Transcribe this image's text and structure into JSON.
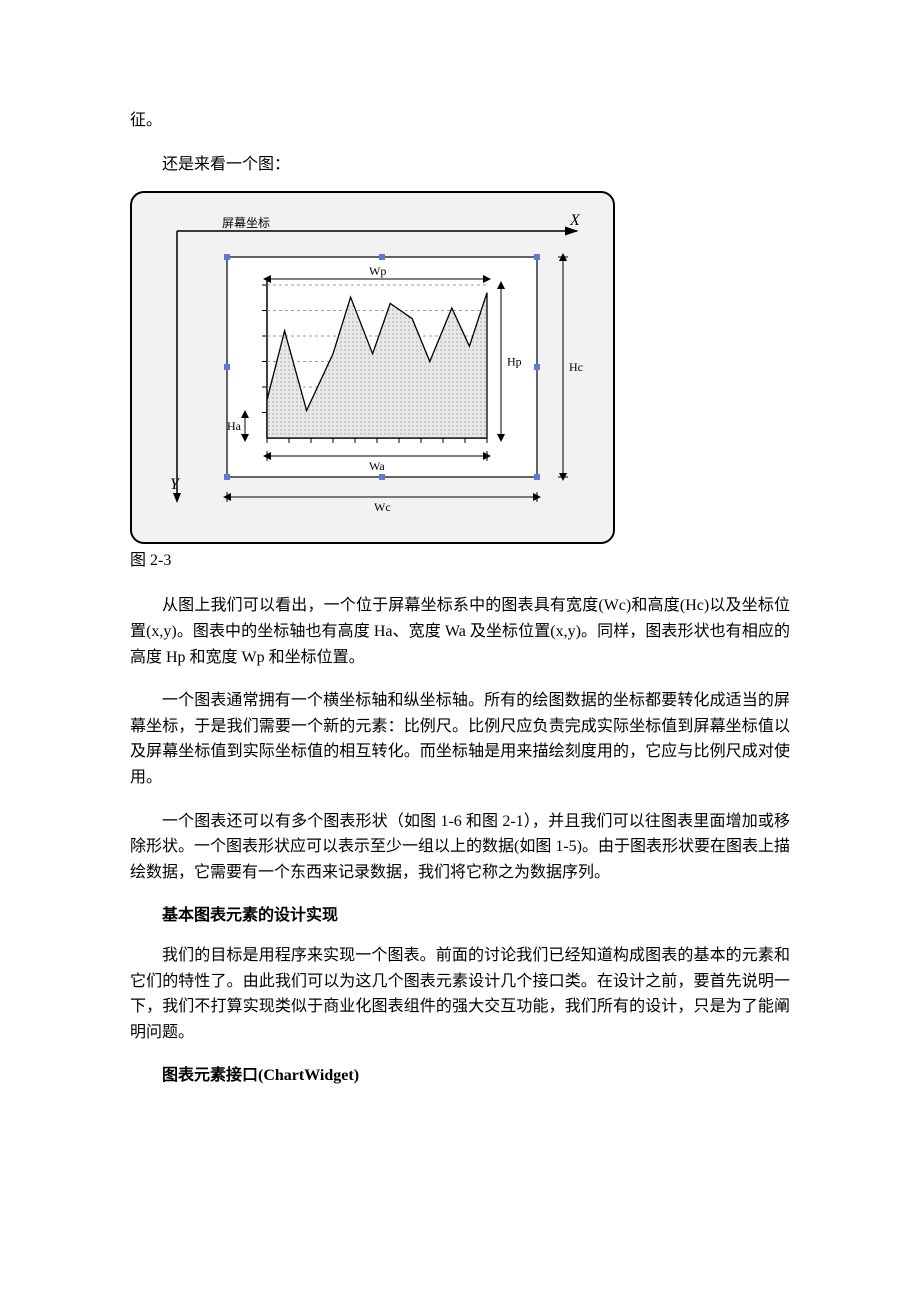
{
  "fragment_top": "征。",
  "lead_line": "还是来看一个图：",
  "figure": {
    "caption": "图 2-3",
    "labels": {
      "screen_coord": "屏幕坐标",
      "X": "X",
      "Y": "Y",
      "Wc": "Wc",
      "Hc": "Hc",
      "Wp": "Wp",
      "Hp": "Hp",
      "Wa": "Wa",
      "Ha": "Ha"
    },
    "style": {
      "outer_border_color": "#000000",
      "outer_bg": "#f2f2f2",
      "inner_border_color": "#000000",
      "inner_bg": "#ffffff",
      "inner_handle_color": "#5b7bd5",
      "arrow_color": "#000000",
      "grid_color": "#9a9a9a",
      "chart_fill": "#bfbfbf",
      "chart_line": "#000000",
      "dim_line_color": "#000000",
      "label_font_size": 12,
      "axis_label_font_size": 16
    },
    "chart": {
      "type": "area",
      "points_norm_x": [
        0.0,
        0.08,
        0.18,
        0.3,
        0.38,
        0.48,
        0.56,
        0.66,
        0.74,
        0.84,
        0.92,
        1.0
      ],
      "points_norm_y": [
        0.25,
        0.7,
        0.18,
        0.55,
        0.92,
        0.55,
        0.88,
        0.78,
        0.5,
        0.85,
        0.6,
        0.95
      ],
      "baseline_norm_y": 0.0,
      "grid_rows": 6
    }
  },
  "para1": "从图上我们可以看出，一个位于屏幕坐标系中的图表具有宽度(Wc)和高度(Hc)以及坐标位置(x,y)。图表中的坐标轴也有高度 Ha、宽度 Wa 及坐标位置(x,y)。同样，图表形状也有相应的高度 Hp 和宽度 Wp 和坐标位置。",
  "para2": "一个图表通常拥有一个横坐标轴和纵坐标轴。所有的绘图数据的坐标都要转化成适当的屏幕坐标，于是我们需要一个新的元素：比例尺。比例尺应负责完成实际坐标值到屏幕坐标值以及屏幕坐标值到实际坐标值的相互转化。而坐标轴是用来描绘刻度用的，它应与比例尺成对使用。",
  "para3": "一个图表还可以有多个图表形状（如图 1-6 和图 2-1），并且我们可以往图表里面增加或移除形状。一个图表形状应可以表示至少一组以上的数据(如图 1-5)。由于图表形状要在图表上描绘数据，它需要有一个东西来记录数据，我们将它称之为数据序列。",
  "heading1": "基本图表元素的设计实现",
  "para4": "我们的目标是用程序来实现一个图表。前面的讨论我们已经知道构成图表的基本的元素和它们的特性了。由此我们可以为这几个图表元素设计几个接口类。在设计之前，要首先说明一下，我们不打算实现类似于商业化图表组件的强大交互功能，我们所有的设计，只是为了能阐明问题。",
  "heading2": "图表元素接口(ChartWidget)"
}
